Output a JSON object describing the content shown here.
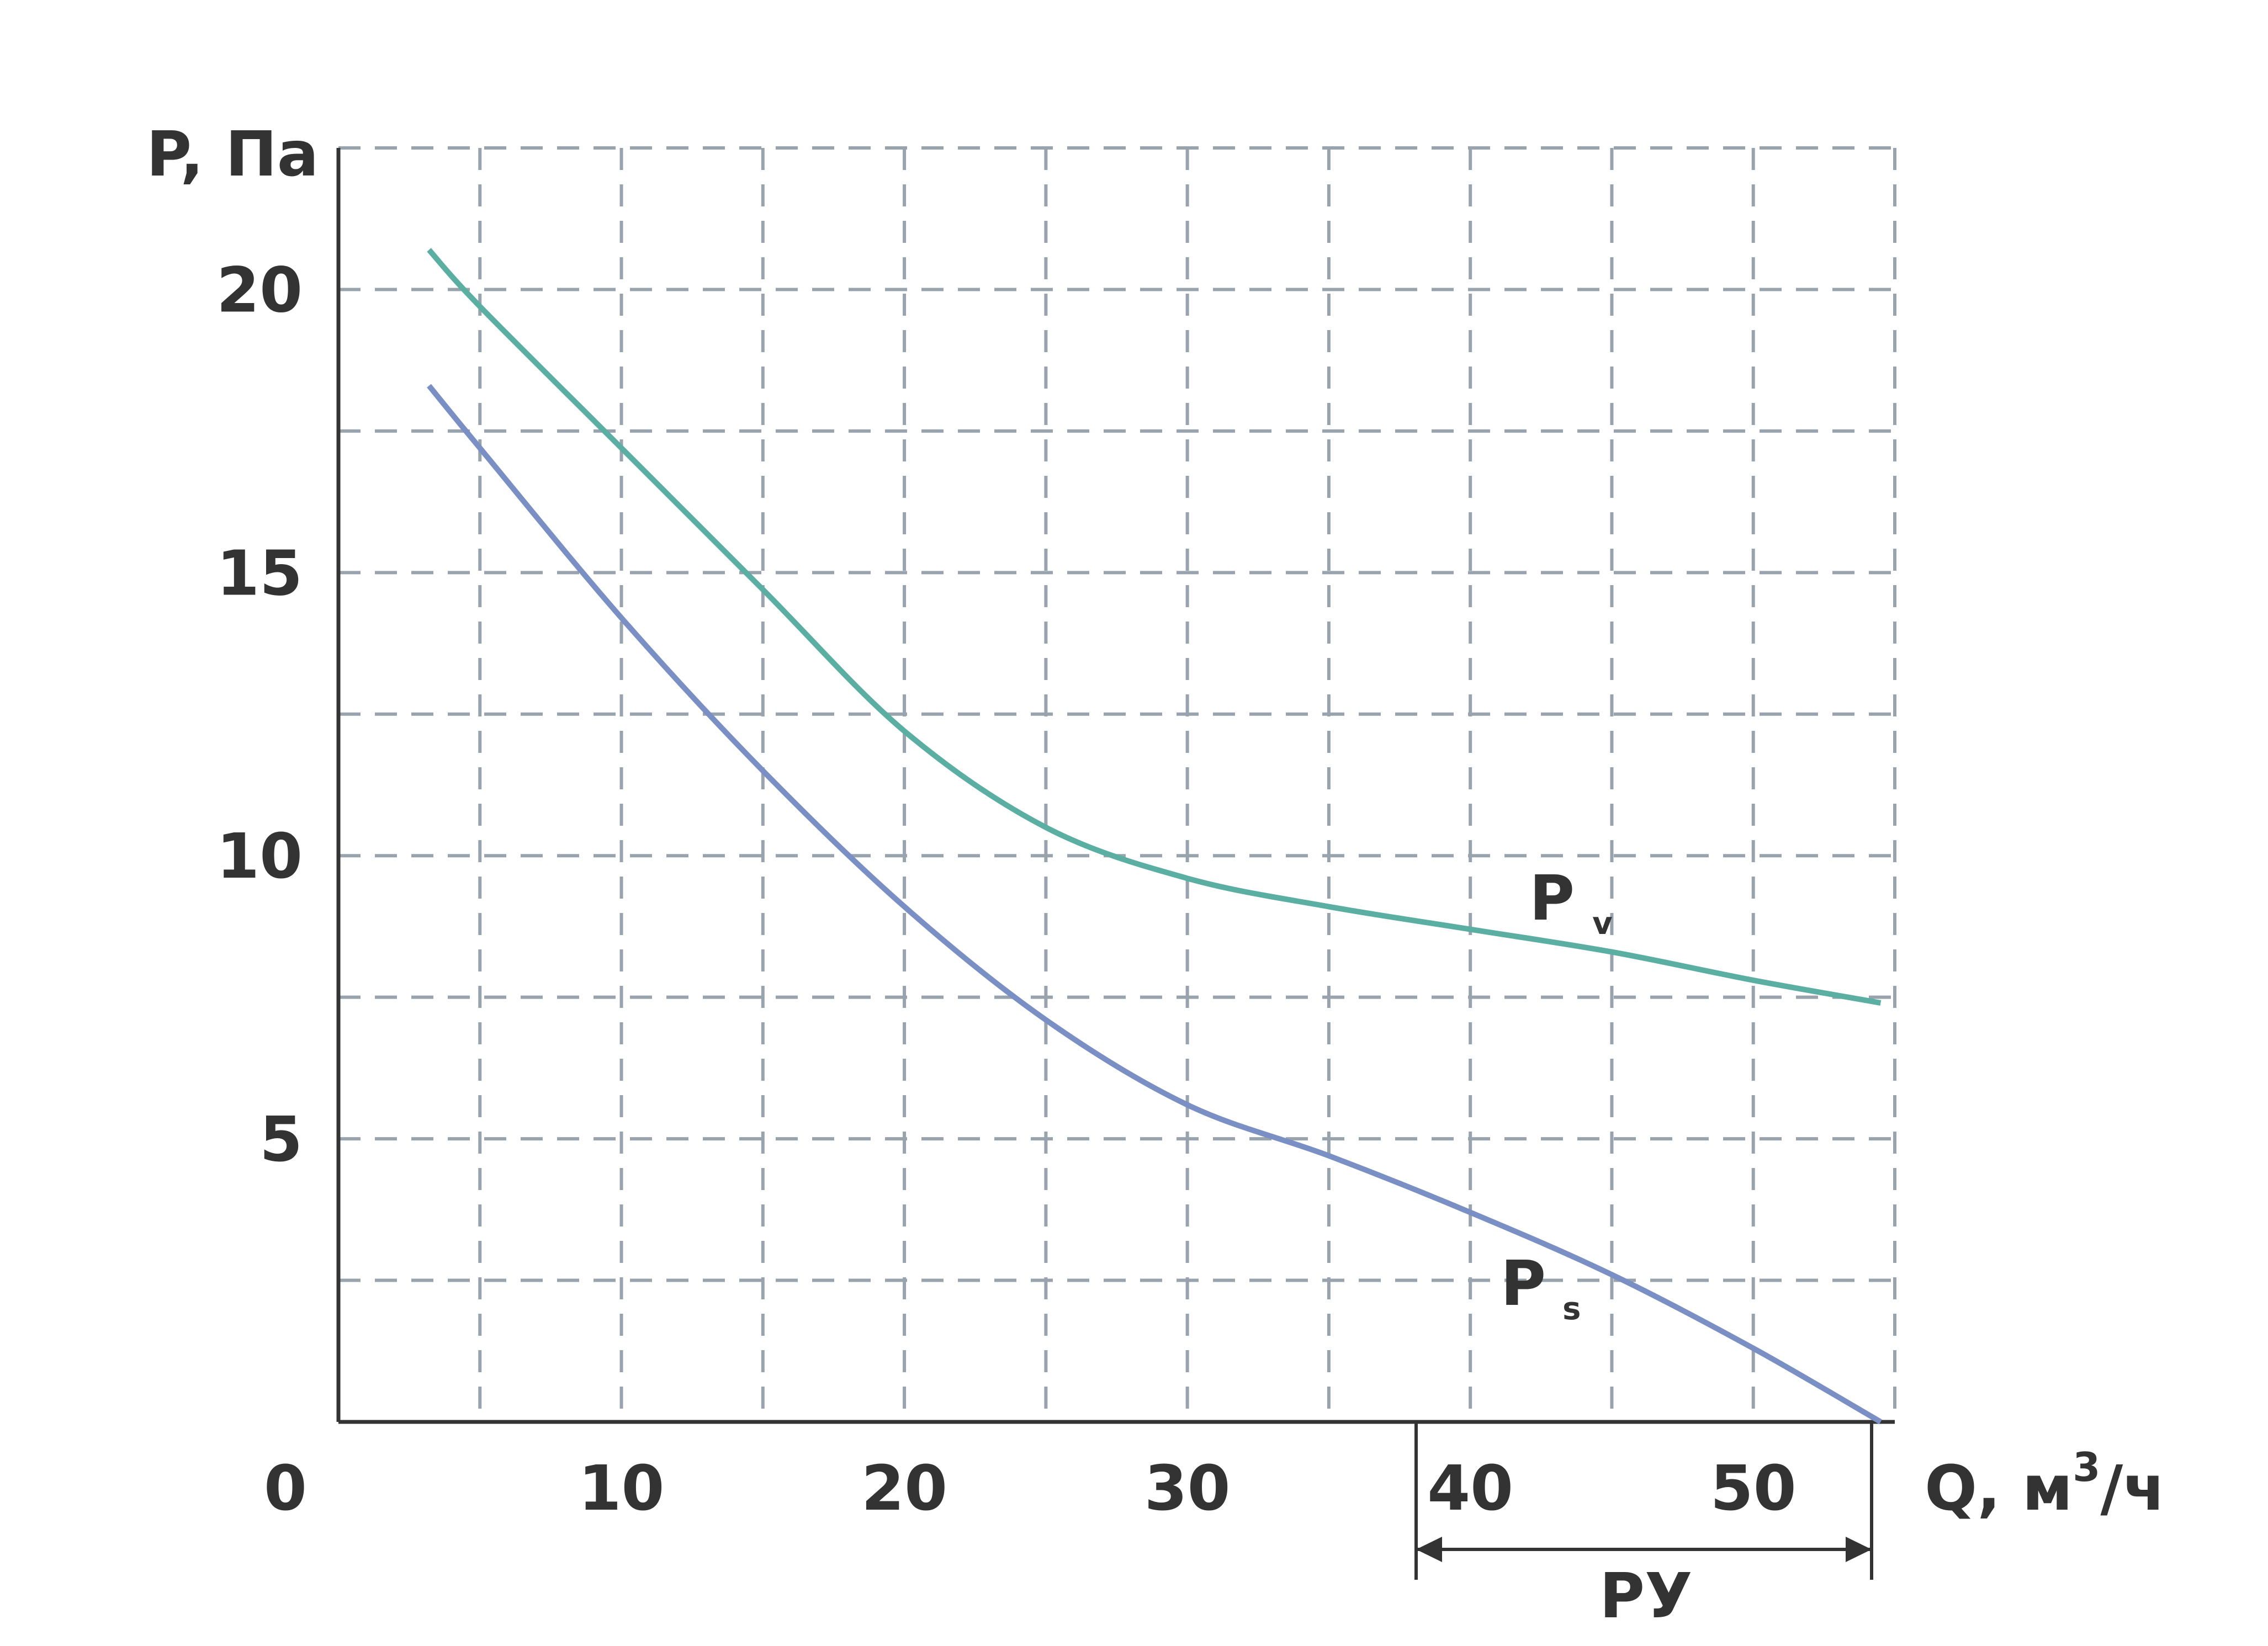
{
  "chart_data": {
    "type": "line",
    "title": "",
    "ylabel": "P, Па",
    "xlabel": {
      "main": "Q, м",
      "sup": "3",
      "end": "/ч"
    },
    "origin_label": "0",
    "x_ticks": [
      "10",
      "20",
      "30",
      "40",
      "50"
    ],
    "y_ticks": [
      "5",
      "10",
      "15",
      "20"
    ],
    "xlim": [
      0,
      55
    ],
    "ylim": [
      0,
      22.5
    ],
    "grid": true,
    "range_marker": {
      "label": "PУ",
      "from": 38.5,
      "to": 54.5
    },
    "series": [
      {
        "name": "P",
        "sub": "v",
        "color": "#5aaea2",
        "x": [
          3.2,
          5,
          10,
          15,
          20,
          25,
          30,
          35,
          40,
          45,
          50,
          54.5
        ],
        "y": [
          20.7,
          19.7,
          17.2,
          14.7,
          12.2,
          10.5,
          9.6,
          9.1,
          8.7,
          8.3,
          7.8,
          7.4
        ]
      },
      {
        "name": "P",
        "sub": "s",
        "color": "#7a8fc4",
        "x": [
          3.2,
          5,
          10,
          15,
          20,
          25,
          30,
          35,
          40,
          45,
          50,
          54.5
        ],
        "y": [
          18.3,
          17.2,
          14.2,
          11.5,
          9.1,
          7.1,
          5.6,
          4.7,
          3.7,
          2.6,
          1.3,
          0
        ]
      }
    ]
  }
}
